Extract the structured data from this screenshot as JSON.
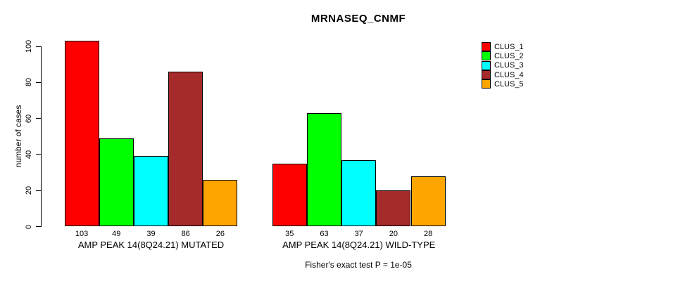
{
  "title": "MRNASEQ_CNMF",
  "subtitle": "Fisher's exact test P = 1e-05",
  "chart_data": {
    "type": "bar",
    "title": "MRNASEQ_CNMF",
    "xlabel": "",
    "ylabel": "number of cases",
    "ylim": [
      0,
      100
    ],
    "yticks": [
      0,
      20,
      40,
      60,
      80,
      100
    ],
    "grid": false,
    "legend_position": "right",
    "bar_value_labels_shown": true,
    "categories": [
      "AMP PEAK 14(8Q24.21) MUTATED",
      "AMP PEAK 14(8Q24.21) WILD-TYPE"
    ],
    "series": [
      {
        "name": "CLUS_1",
        "color": "#ff0000",
        "values": [
          103,
          35
        ]
      },
      {
        "name": "CLUS_2",
        "color": "#00ff00",
        "values": [
          49,
          63
        ]
      },
      {
        "name": "CLUS_3",
        "color": "#00ffff",
        "values": [
          39,
          37
        ]
      },
      {
        "name": "CLUS_4",
        "color": "#a52a2a",
        "values": [
          86,
          20
        ]
      },
      {
        "name": "CLUS_5",
        "color": "#ffa500",
        "values": [
          26,
          28
        ]
      }
    ],
    "annotation": "Fisher's exact test P = 1e-05"
  }
}
